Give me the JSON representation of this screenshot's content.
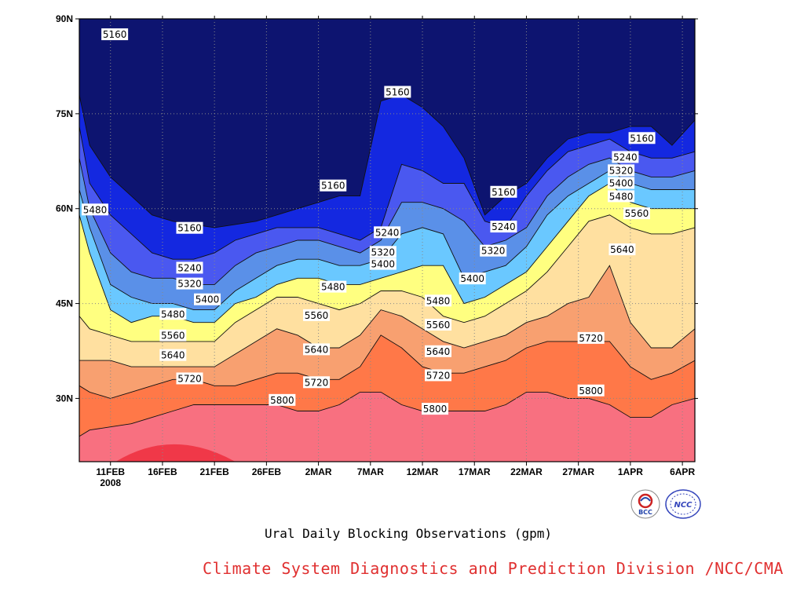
{
  "chart_data": {
    "type": "heatmap",
    "subtype": "filled-contour",
    "title": "Ural Daily Blocking Observations (gpm)",
    "x_axis": {
      "ticks": [
        "11FEB",
        "16FEB",
        "21FEB",
        "26FEB",
        "2MAR",
        "7MAR",
        "12MAR",
        "17MAR",
        "22MAR",
        "27MAR",
        "1APR",
        "6APR"
      ],
      "tick_days": [
        0,
        5,
        10,
        15,
        20,
        25,
        30,
        35,
        40,
        45,
        50,
        55
      ],
      "year_label": "2008",
      "range_days": [
        -3,
        56.2
      ]
    },
    "y_axis": {
      "ticks": [
        "30N",
        "45N",
        "60N",
        "75N",
        "90N"
      ],
      "tick_values": [
        30,
        45,
        60,
        75,
        90
      ],
      "range": [
        20,
        90
      ]
    },
    "grid": true,
    "levels": [
      5160,
      5240,
      5320,
      5400,
      5480,
      5560,
      5640,
      5720,
      5800
    ],
    "fill_colors": [
      "#0d1470",
      "#1428e0",
      "#4a58f0",
      "#5a90e8",
      "#6ac8ff",
      "#ffff80",
      "#ffe0a0",
      "#f8a070",
      "#ff7848",
      "#f87080",
      "#f03848"
    ],
    "contours": [
      {
        "level": 5160,
        "x": [
          -3,
          -2,
          0,
          2,
          4,
          6,
          8,
          10,
          12,
          14,
          16,
          18,
          20,
          22,
          24,
          26,
          28,
          30,
          32,
          34,
          36,
          38,
          40,
          42,
          44,
          46,
          48,
          50,
          52,
          54,
          56.2
        ],
        "y": [
          78,
          70,
          65,
          62,
          59,
          58,
          57.5,
          57,
          57.5,
          58,
          59,
          60,
          61,
          62,
          62,
          77,
          78,
          76,
          73,
          68,
          59,
          62,
          64,
          68,
          71,
          72,
          72,
          73,
          73,
          70,
          74
        ]
      },
      {
        "level": 5240,
        "x": [
          -3,
          -2,
          0,
          2,
          4,
          6,
          8,
          10,
          12,
          14,
          16,
          18,
          20,
          22,
          24,
          26,
          28,
          30,
          32,
          34,
          36,
          38,
          40,
          42,
          44,
          46,
          48,
          50,
          52,
          54,
          56.2
        ],
        "y": [
          73,
          64,
          59,
          56,
          53,
          52,
          52,
          53,
          55,
          56,
          57,
          57,
          57,
          56,
          55,
          57,
          67,
          66,
          64,
          64,
          58,
          57,
          62,
          66,
          69,
          70,
          71,
          69,
          68,
          68,
          69
        ]
      },
      {
        "level": 5320,
        "x": [
          -3,
          -2,
          0,
          2,
          4,
          6,
          8,
          10,
          12,
          14,
          16,
          18,
          20,
          22,
          24,
          26,
          28,
          30,
          32,
          34,
          36,
          38,
          40,
          42,
          44,
          46,
          48,
          50,
          52,
          54,
          56.2
        ],
        "y": [
          68,
          60,
          53,
          50,
          49,
          49,
          48,
          48,
          51,
          53,
          54,
          55,
          55,
          54,
          53,
          55,
          61,
          61,
          60,
          58,
          54,
          55,
          57,
          62,
          65,
          67,
          68,
          66,
          65,
          65,
          66
        ]
      },
      {
        "level": 5400,
        "x": [
          -3,
          -2,
          0,
          2,
          4,
          6,
          8,
          10,
          12,
          14,
          16,
          18,
          20,
          22,
          24,
          26,
          28,
          30,
          32,
          34,
          36,
          38,
          40,
          42,
          44,
          46,
          48,
          50,
          52,
          54,
          56.2
        ],
        "y": [
          63,
          57,
          48,
          46,
          45,
          45,
          44,
          44,
          47,
          49,
          51,
          52,
          52,
          51,
          51,
          52,
          56,
          57,
          56,
          49,
          50,
          51,
          54,
          59,
          62,
          64,
          66,
          64,
          63,
          63,
          63
        ]
      },
      {
        "level": 5480,
        "x": [
          -3,
          -2,
          0,
          2,
          4,
          6,
          8,
          10,
          12,
          14,
          16,
          18,
          20,
          22,
          24,
          26,
          28,
          30,
          32,
          34,
          36,
          38,
          40,
          42,
          44,
          46,
          48,
          50,
          52,
          54,
          56.2
        ],
        "y": [
          59,
          53,
          44,
          42,
          43,
          43,
          42,
          42,
          45,
          46,
          48,
          49,
          49,
          48,
          48,
          49,
          50,
          51,
          51,
          45,
          46,
          48,
          50,
          54,
          58,
          62,
          64,
          61,
          60,
          60,
          60
        ]
      },
      {
        "level": 5560,
        "x": [
          -3,
          -2,
          0,
          2,
          4,
          6,
          8,
          10,
          12,
          14,
          16,
          18,
          20,
          22,
          24,
          26,
          28,
          30,
          32,
          34,
          36,
          38,
          40,
          42,
          44,
          46,
          48,
          50,
          52,
          54,
          56.2
        ],
        "y": [
          43,
          41,
          40,
          39,
          39,
          39,
          39,
          39,
          42,
          44,
          46,
          46,
          45,
          44,
          45,
          47,
          47,
          46,
          43,
          42,
          43,
          45,
          47,
          50,
          54,
          58,
          59,
          57,
          56,
          56,
          57
        ]
      },
      {
        "level": 5640,
        "x": [
          -3,
          -2,
          0,
          2,
          4,
          6,
          8,
          10,
          12,
          14,
          16,
          18,
          20,
          22,
          24,
          26,
          28,
          30,
          32,
          34,
          36,
          38,
          40,
          42,
          44,
          46,
          48,
          50,
          52,
          54,
          56.2
        ],
        "y": [
          36,
          36,
          36,
          35,
          35,
          35,
          35,
          35,
          37,
          39,
          41,
          40,
          38,
          38,
          40,
          44,
          43,
          41,
          39,
          38,
          39,
          40,
          42,
          43,
          45,
          46,
          51,
          42,
          38,
          38,
          41
        ]
      },
      {
        "level": 5720,
        "x": [
          -3,
          -2,
          0,
          2,
          4,
          6,
          8,
          10,
          12,
          14,
          16,
          18,
          20,
          22,
          24,
          26,
          28,
          30,
          32,
          34,
          36,
          38,
          40,
          42,
          44,
          46,
          48,
          50,
          52,
          54,
          56.2
        ],
        "y": [
          32,
          31,
          30,
          31,
          32,
          33,
          33,
          32,
          32,
          33,
          34,
          34,
          33,
          33,
          35,
          40,
          38,
          35,
          34,
          34,
          35,
          36,
          38,
          39,
          39,
          39,
          39,
          35,
          33,
          34,
          36
        ]
      },
      {
        "level": 5800,
        "x": [
          -3,
          -2,
          0,
          2,
          4,
          6,
          8,
          10,
          12,
          14,
          16,
          18,
          20,
          22,
          24,
          26,
          28,
          30,
          32,
          34,
          36,
          38,
          40,
          42,
          44,
          46,
          48,
          50,
          52,
          54,
          56.2
        ],
        "y": [
          24,
          25,
          25.5,
          26,
          27,
          28,
          29,
          29,
          29,
          29,
          29,
          28,
          28,
          29,
          31,
          31,
          29,
          28,
          28,
          28,
          28,
          29,
          31,
          31,
          30,
          30,
          29,
          27,
          27,
          29,
          30
        ]
      }
    ],
    "labels": [
      {
        "text": "5160",
        "x": -0.8,
        "y": 87.5
      },
      {
        "text": "5160",
        "x": 26.4,
        "y": 78.4
      },
      {
        "text": "5160",
        "x": 49.9,
        "y": 71.1
      },
      {
        "text": "5160",
        "x": 20.2,
        "y": 63.6
      },
      {
        "text": "5160",
        "x": 36.6,
        "y": 62.6
      },
      {
        "text": "5160",
        "x": 6.4,
        "y": 56.9
      },
      {
        "text": "5240",
        "x": 48.3,
        "y": 68.1
      },
      {
        "text": "5320",
        "x": 47.9,
        "y": 66.0
      },
      {
        "text": "5400",
        "x": 47.9,
        "y": 64.0
      },
      {
        "text": "5480",
        "x": 47.9,
        "y": 61.9
      },
      {
        "text": "5480",
        "x": -2.7,
        "y": 59.8
      },
      {
        "text": "5560",
        "x": 49.4,
        "y": 59.2
      },
      {
        "text": "5240",
        "x": 25.4,
        "y": 56.2
      },
      {
        "text": "5240",
        "x": 36.6,
        "y": 57.1
      },
      {
        "text": "5320",
        "x": 25.0,
        "y": 53.1
      },
      {
        "text": "5320",
        "x": 35.6,
        "y": 53.3
      },
      {
        "text": "5400",
        "x": 25.0,
        "y": 51.2
      },
      {
        "text": "5400",
        "x": 33.6,
        "y": 48.9
      },
      {
        "text": "5240",
        "x": 6.4,
        "y": 50.6
      },
      {
        "text": "5320",
        "x": 6.4,
        "y": 48.1
      },
      {
        "text": "5480",
        "x": 20.2,
        "y": 47.6
      },
      {
        "text": "5640",
        "x": 48.0,
        "y": 53.5
      },
      {
        "text": "5400",
        "x": 8.1,
        "y": 45.6
      },
      {
        "text": "5480",
        "x": 30.3,
        "y": 45.4
      },
      {
        "text": "5480",
        "x": 4.8,
        "y": 43.3
      },
      {
        "text": "5560",
        "x": 18.6,
        "y": 43.1
      },
      {
        "text": "5560",
        "x": 30.3,
        "y": 41.6
      },
      {
        "text": "5560",
        "x": 4.8,
        "y": 39.9
      },
      {
        "text": "5720",
        "x": 45.0,
        "y": 39.5
      },
      {
        "text": "5640",
        "x": 18.6,
        "y": 37.7
      },
      {
        "text": "5640",
        "x": 30.3,
        "y": 37.4
      },
      {
        "text": "5640",
        "x": 4.8,
        "y": 36.8
      },
      {
        "text": "5720",
        "x": 30.3,
        "y": 33.6
      },
      {
        "text": "5720",
        "x": 6.4,
        "y": 33.1
      },
      {
        "text": "5720",
        "x": 18.6,
        "y": 32.5
      },
      {
        "text": "5800",
        "x": 45.0,
        "y": 31.2
      },
      {
        "text": "5800",
        "x": 15.3,
        "y": 29.7
      },
      {
        "text": "5800",
        "x": 30.0,
        "y": 28.3
      }
    ]
  },
  "footer": {
    "title": "Ural Daily Blocking Observations (gpm)",
    "credit": "Climate System Diagnostics and Prediction Division /NCC/CMA"
  },
  "logos": {
    "bcc": "BCC",
    "ncc": "NCC"
  }
}
